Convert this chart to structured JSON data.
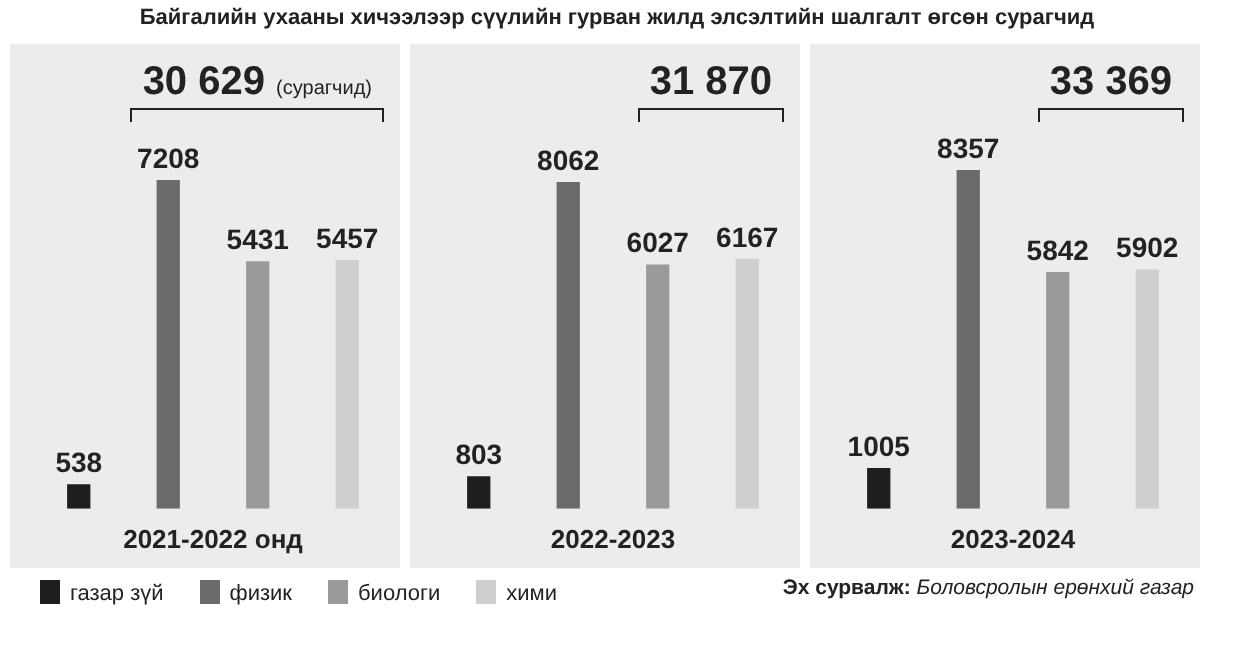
{
  "chart_data": [
    {
      "type": "bar",
      "title": "Байгалийн ухааны хичээлээр сүүлийн гурван жилд элсэлтийн шалгалт өгсөн сурагчид",
      "categories": [
        null,
        null,
        null,
        null
      ],
      "xlabel": "2021-2022 онд",
      "data_labels": true,
      "tick_labels": false,
      "grid": false,
      "values": [
        538,
        7208,
        5431,
        5457
      ],
      "colors": [
        "#1e1e1e",
        "#6b6b6b",
        "#9a9a9a",
        "#cfcfcf"
      ],
      "annotations": [
        "30 629 (сурагчид)"
      ]
    },
    {
      "type": "bar",
      "categories": [
        null,
        null,
        null,
        null
      ],
      "xlabel": "2022-2023",
      "data_labels": true,
      "tick_labels": false,
      "grid": false,
      "values": [
        803,
        8062,
        6027,
        6167
      ],
      "colors": [
        "#1e1e1e",
        "#6b6b6b",
        "#9a9a9a",
        "#cfcfcf"
      ],
      "annotations": [
        "31 870"
      ]
    },
    {
      "type": "bar",
      "categories": [
        null,
        null,
        null,
        null
      ],
      "xlabel": "2023-2024",
      "data_labels": true,
      "tick_labels": false,
      "grid": false,
      "values": [
        1005,
        8357,
        5842,
        5902
      ],
      "colors": [
        "#1e1e1e",
        "#6b6b6b",
        "#9a9a9a",
        "#cfcfcf"
      ],
      "annotations": [
        "33 369",
        "Эх сурвалж: Боловсролын ерөнхий газар"
      ]
    },
    {
      "type": "other",
      "categories": [
        "газар зүй",
        "физик",
        "биологи",
        "хими"
      ],
      "colors": [
        "#1e1e1e",
        "#6b6b6b",
        "#9a9a9a",
        "#cfcfcf"
      ]
    }
  ]
}
